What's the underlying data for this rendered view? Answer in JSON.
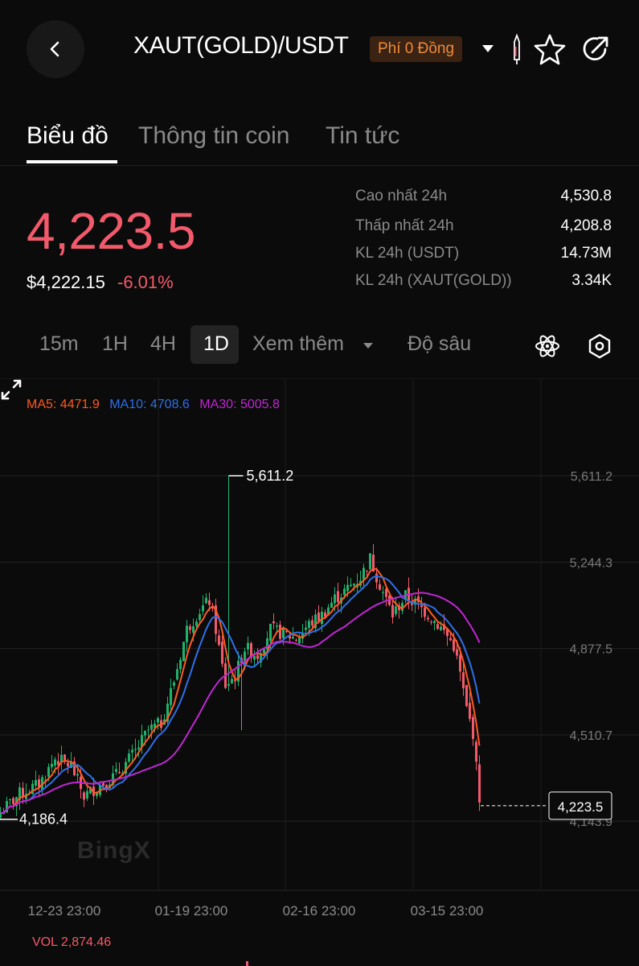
{
  "header": {
    "pair": "XAUT(GOLD)/USDT",
    "promo_badge": "Phí 0 Đồng"
  },
  "tabs": [
    {
      "label": "Biểu đồ",
      "active": true
    },
    {
      "label": "Thông tin coin",
      "active": false
    },
    {
      "label": "Tin tức",
      "active": false
    }
  ],
  "price": {
    "last": "4,223.5",
    "usd": "$4,222.15",
    "change": "-6.01%"
  },
  "stats": [
    {
      "label": "Cao nhất 24h",
      "value": "4,530.8"
    },
    {
      "label": "Thấp nhất 24h",
      "value": "4,208.8"
    },
    {
      "label": "KL 24h (USDT)",
      "value": "14.73M"
    },
    {
      "label": "KL 24h (XAUT(GOLD))",
      "value": "3.34K"
    }
  ],
  "timeframes": {
    "items": [
      "15m",
      "1H",
      "4H",
      "1D"
    ],
    "active": "1D",
    "more": "Xem thêm",
    "depth": "Độ sâu"
  },
  "ma_legend": {
    "ma5": "MA5: 4471.9",
    "ma10": "MA10: 4708.6",
    "ma30": "MA30: 5005.8"
  },
  "vol_label": "VOL 2,874.46",
  "watermark": "BingX",
  "colors": {
    "up": "#20b26c",
    "down": "#f25a6b",
    "ma5": "#ff5a1f",
    "ma10": "#2f6fe8",
    "ma30": "#c026d3",
    "accent_badge": "#f08a3a"
  },
  "chart_data": {
    "type": "candlestick",
    "y_ticks": [
      "5,611.2",
      "5,244.3",
      "4,877.5",
      "4,510.7",
      "4,143.9"
    ],
    "x_ticks": [
      "12-23 23:00",
      "01-19 23:00",
      "02-16 23:00",
      "03-15 23:00"
    ],
    "ylim": [
      4000,
      5750
    ],
    "high_marker": "5,611.2",
    "low_marker": "4,186.4",
    "last_price_label": "4,223.5",
    "last_price": 4223.5,
    "ma_overlays": [
      "MA5",
      "MA10",
      "MA30"
    ]
  }
}
